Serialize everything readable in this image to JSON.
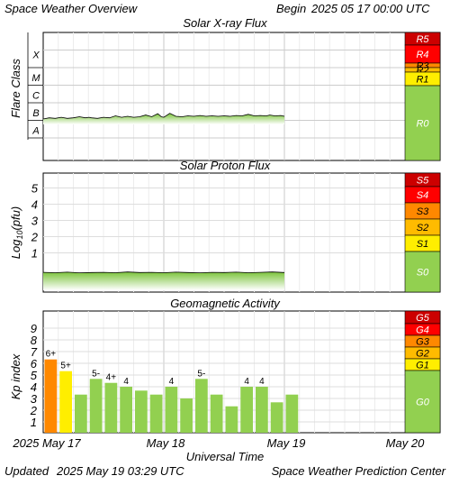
{
  "header": {
    "title": "Space Weather Overview",
    "begin_label": "Begin",
    "begin_value": "2025 05 17 00:00 UTC"
  },
  "footer": {
    "updated_label": "Updated",
    "updated_value": "2025 May 19 03:29 UTC",
    "credit": "Space Weather Prediction Center"
  },
  "colors": {
    "red_dark": "#cc0000",
    "red": "#ff0000",
    "orange": "#ff8800",
    "amber": "#ffbb00",
    "yellow": "#ffee00",
    "green": "#92d050",
    "kp_bar": "#92d050"
  },
  "chart_data": [
    {
      "type": "line",
      "title": "Solar X-ray Flux",
      "ylabel": "Flare Class",
      "yscale": "log",
      "flare_classes": [
        "A",
        "B",
        "C",
        "M",
        "X"
      ],
      "scale_bands": [
        {
          "label": "R5",
          "color": "#cc0000"
        },
        {
          "label": "R4",
          "color": "#ff0000"
        },
        {
          "label": "R3",
          "color": "#ff8800"
        },
        {
          "label": "R2",
          "color": "#ffbb00"
        },
        {
          "label": "R1",
          "color": "#ffee00"
        },
        {
          "label": "R0",
          "color": "#92d050"
        }
      ],
      "x_range_days": [
        0,
        3
      ],
      "series": [
        {
          "x": [
            0,
            0.05,
            0.1,
            0.15,
            0.2,
            0.25,
            0.3,
            0.35,
            0.38,
            0.4,
            0.45,
            0.5,
            0.55,
            0.6,
            0.65,
            0.7,
            0.75,
            0.8,
            0.85,
            0.9,
            0.95,
            0.98,
            1.0,
            1.05,
            1.1,
            1.15,
            1.2,
            1.25,
            1.3,
            1.35,
            1.4,
            1.45,
            1.5,
            1.55,
            1.6,
            1.65,
            1.7,
            1.75,
            1.8,
            1.85,
            1.88,
            1.92,
            1.97,
            2.0
          ],
          "y": [
            1.2e-07,
            1.4e-07,
            1.3e-07,
            1.5e-07,
            1.3e-07,
            1.4e-07,
            1.6e-07,
            1.4e-07,
            1.5e-07,
            1.4e-07,
            1.3e-07,
            1.5e-07,
            1.4e-07,
            1.8e-07,
            1.5e-07,
            1.7e-07,
            1.5e-07,
            1.6e-07,
            2e-07,
            1.6e-07,
            2.4e-07,
            1.6e-07,
            1.5e-07,
            2.5e-07,
            1.7e-07,
            1.6e-07,
            1.8e-07,
            1.7e-07,
            1.9e-07,
            1.7e-07,
            1.8e-07,
            1.7e-07,
            1.8e-07,
            1.7e-07,
            1.9e-07,
            1.8e-07,
            2.2e-07,
            1.8e-07,
            1.9e-07,
            1.8e-07,
            2e-07,
            1.8e-07,
            1.9e-07,
            1.7e-07
          ]
        }
      ]
    },
    {
      "type": "line",
      "title": "Solar Proton Flux",
      "ylabel": "Log",
      "ylabel_sub": "10",
      "ylabel_end": "(pfu)",
      "ytick_labels": [
        "1",
        "2",
        "3",
        "4",
        "5"
      ],
      "scale_bands": [
        {
          "label": "S5",
          "color": "#cc0000"
        },
        {
          "label": "S4",
          "color": "#ff0000"
        },
        {
          "label": "S3",
          "color": "#ff8800"
        },
        {
          "label": "S2",
          "color": "#ffbb00"
        },
        {
          "label": "S1",
          "color": "#ffee00"
        },
        {
          "label": "S0",
          "color": "#92d050"
        }
      ],
      "x_range_days": [
        0,
        3
      ],
      "y_range_log": [
        -1,
        5.6
      ],
      "series": [
        {
          "x": [
            0,
            0.1,
            0.2,
            0.3,
            0.4,
            0.5,
            0.6,
            0.7,
            0.8,
            0.9,
            1.0,
            1.1,
            1.2,
            1.3,
            1.4,
            1.5,
            1.6,
            1.7,
            1.8,
            1.9,
            2.0
          ],
          "y": [
            -0.2,
            -0.22,
            -0.19,
            -0.23,
            -0.21,
            -0.2,
            -0.22,
            -0.18,
            -0.21,
            -0.2,
            -0.22,
            -0.19,
            -0.21,
            -0.23,
            -0.2,
            -0.21,
            -0.19,
            -0.22,
            -0.2,
            -0.18,
            -0.21
          ]
        }
      ]
    },
    {
      "type": "bar",
      "title": "Geomagnetic Activity",
      "ylabel": "Kp index",
      "xlabel": "Universal Time",
      "yticks": [
        1,
        2,
        3,
        4,
        5,
        6,
        7,
        8,
        9
      ],
      "ylim": [
        0,
        10
      ],
      "scale_bands": [
        {
          "label": "G5",
          "color": "#cc0000"
        },
        {
          "label": "G4",
          "color": "#ff0000"
        },
        {
          "label": "G3",
          "color": "#ff8800"
        },
        {
          "label": "G2",
          "color": "#ffbb00"
        },
        {
          "label": "G1",
          "color": "#ffee00"
        },
        {
          "label": "G0",
          "color": "#92d050"
        }
      ],
      "x_tick_labels": [
        "2025 May 17",
        "May 18",
        "May 19",
        "May 20"
      ],
      "bars": [
        {
          "value": 6.33,
          "label": "6+",
          "color": "#ff8800"
        },
        {
          "value": 5.33,
          "label": "5+",
          "color": "#ffee00"
        },
        {
          "value": 3.33,
          "label": "",
          "color": "#92d050"
        },
        {
          "value": 4.67,
          "label": "5-",
          "color": "#92d050"
        },
        {
          "value": 4.33,
          "label": "4+",
          "color": "#92d050"
        },
        {
          "value": 4.0,
          "label": "4",
          "color": "#92d050"
        },
        {
          "value": 3.67,
          "label": "",
          "color": "#92d050"
        },
        {
          "value": 3.33,
          "label": "",
          "color": "#92d050"
        },
        {
          "value": 4.0,
          "label": "4",
          "color": "#92d050"
        },
        {
          "value": 3.0,
          "label": "",
          "color": "#92d050"
        },
        {
          "value": 4.67,
          "label": "5-",
          "color": "#92d050"
        },
        {
          "value": 3.33,
          "label": "",
          "color": "#92d050"
        },
        {
          "value": 2.33,
          "label": "",
          "color": "#92d050"
        },
        {
          "value": 4.0,
          "label": "4",
          "color": "#92d050"
        },
        {
          "value": 4.0,
          "label": "4",
          "color": "#92d050"
        },
        {
          "value": 2.67,
          "label": "",
          "color": "#92d050"
        },
        {
          "value": 3.33,
          "label": "",
          "color": "#92d050"
        }
      ]
    }
  ]
}
